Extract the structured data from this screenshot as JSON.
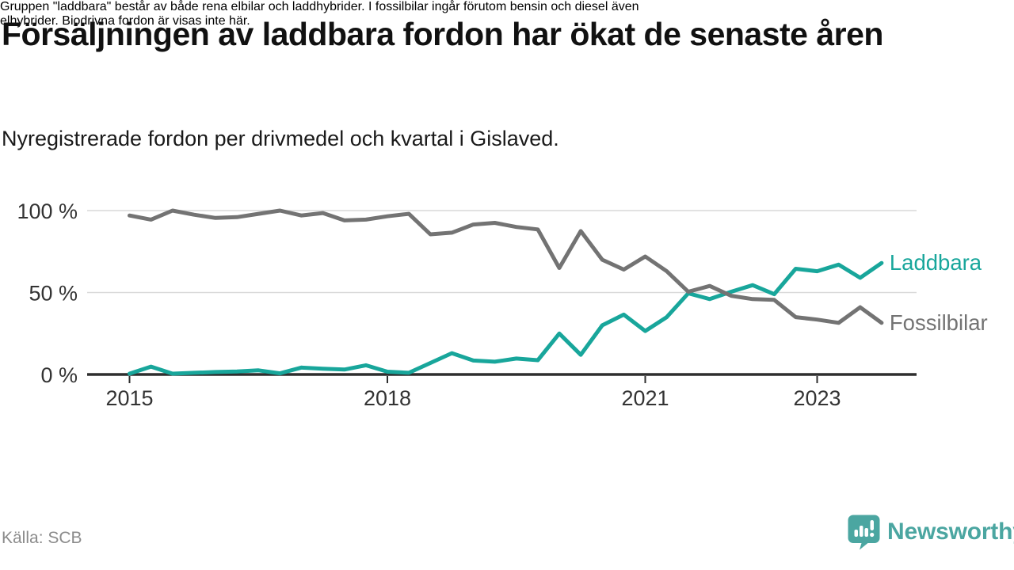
{
  "header": {
    "title": "Försäljningen av laddbara fordon har ökat de senaste åren",
    "subtitle": "Nyregistrerade fordon per drivmedel och kvartal i Gislaved."
  },
  "chart_data": {
    "type": "line",
    "title": "Nyregistrerade fordon per drivmedel och kvartal i Gislaved",
    "x_unit": "quarter",
    "x_start": 2015,
    "x_step": 0.25,
    "x_end": 2023.75,
    "ylim": [
      0,
      100
    ],
    "grid": true,
    "legend_position": "right-of-line-end",
    "yticks": [
      {
        "value": 0,
        "label": "0 %"
      },
      {
        "value": 50,
        "label": "50 %"
      },
      {
        "value": 100,
        "label": "100 %"
      }
    ],
    "xticks": [
      {
        "value": 2015,
        "label": "2015"
      },
      {
        "value": 2018,
        "label": "2018"
      },
      {
        "value": 2021,
        "label": "2021"
      },
      {
        "value": 2023,
        "label": "2023"
      }
    ],
    "series": [
      {
        "name": "Laddbara",
        "color": "#18a69b",
        "values": [
          0.5,
          4.8,
          0.5,
          1,
          1.5,
          1.8,
          2.5,
          0.7,
          4.2,
          3.5,
          3,
          5.6,
          1.7,
          1,
          7,
          13,
          8.5,
          7.8,
          9.7,
          8.7,
          25,
          12,
          30,
          36.5,
          26.5,
          35,
          49.5,
          46,
          50.5,
          54.5,
          49,
          64.5,
          63,
          67,
          59,
          68
        ]
      },
      {
        "name": "Fossilbilar",
        "color": "#737373",
        "values": [
          97,
          94.5,
          100,
          97.5,
          95.5,
          96,
          98,
          100,
          97,
          98.5,
          94,
          94.5,
          96.5,
          98,
          85.5,
          86.5,
          91.5,
          92.5,
          90,
          88.5,
          65,
          87.5,
          70,
          64,
          72,
          63,
          50.5,
          54,
          48,
          46,
          45.5,
          35,
          33.5,
          31.5,
          41,
          31.5
        ]
      }
    ]
  },
  "footer": {
    "note_lines": [
      "Gruppen \"laddbara\" består av både rena elbilar och laddhybrider. I fossilbilar ingår förutom bensin och diesel även",
      "elhybrider. Biodrivna fordon är visas inte här."
    ],
    "source": "Källa: SCB",
    "brand": "Newsworthy"
  },
  "theme": {
    "accent_teal": "#18a69b",
    "line_gray": "#737373",
    "logo_teal": "#4ba6a1",
    "grid_color": "#d9d9d9",
    "axis_color": "#2e2e2e",
    "tick_label_color": "#333333",
    "source_color": "#8b8b8b",
    "text_color": "#111111"
  }
}
